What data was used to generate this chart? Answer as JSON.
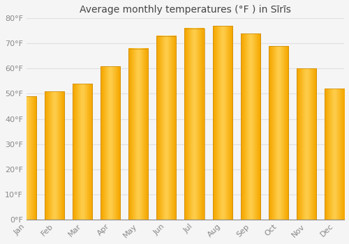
{
  "title": "Average monthly temperatures (°F ) in Sīrīs",
  "months": [
    "Jan",
    "Feb",
    "Mar",
    "Apr",
    "May",
    "Jun",
    "Jul",
    "Aug",
    "Sep",
    "Oct",
    "Nov",
    "Dec"
  ],
  "values": [
    49,
    51,
    54,
    61,
    68,
    73,
    76,
    77,
    74,
    69,
    60,
    52
  ],
  "bar_color_center": "#FFD000",
  "bar_color_edge": "#F5A800",
  "bar_color_bottom": "#E89000",
  "ylim": [
    0,
    80
  ],
  "yticks": [
    0,
    10,
    20,
    30,
    40,
    50,
    60,
    70,
    80
  ],
  "ytick_labels": [
    "0°F",
    "10°F",
    "20°F",
    "30°F",
    "40°F",
    "50°F",
    "60°F",
    "70°F",
    "80°F"
  ],
  "background_color": "#F5F5F5",
  "plot_bg_color": "#F5F5F5",
  "grid_color": "#E0E0E0",
  "title_fontsize": 10,
  "tick_fontsize": 8,
  "tick_color": "#888888",
  "axis_color": "#888888",
  "font_family": "DejaVu Sans"
}
